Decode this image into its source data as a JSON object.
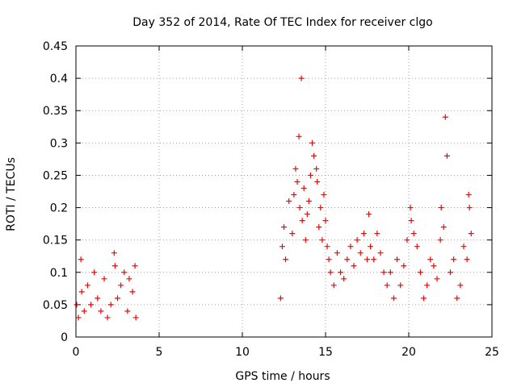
{
  "chart_data": {
    "type": "scatter",
    "title": "Day 352 of 2014, Rate Of TEC Index for receiver clgo",
    "xlabel": "GPS time / hours",
    "ylabel": "ROTI / TECUs",
    "xlim": [
      0,
      25
    ],
    "ylim": [
      0,
      0.45
    ],
    "xticks": [
      0,
      5,
      10,
      15,
      20,
      25
    ],
    "xtick_labels": [
      "0",
      "5",
      "10",
      "15",
      "20",
      "25"
    ],
    "yticks": [
      0,
      0.05,
      0.1,
      0.15,
      0.2,
      0.25,
      0.3,
      0.35,
      0.4,
      0.45
    ],
    "ytick_labels": [
      "0",
      "0.05",
      "0.1",
      "0.15",
      "0.2",
      "0.25",
      "0.3",
      "0.35",
      "0.4",
      "0.45"
    ],
    "grid": true,
    "marker": "+",
    "color": "#ff0000",
    "series": [
      {
        "name": "ROTI",
        "x": [
          0.05,
          0.15,
          0.3,
          0.35,
          0.5,
          0.7,
          0.9,
          1.1,
          1.3,
          1.5,
          1.7,
          1.9,
          2.1,
          2.3,
          2.35,
          2.5,
          2.7,
          2.9,
          3.1,
          3.2,
          3.4,
          3.55,
          3.6,
          12.3,
          12.4,
          12.5,
          12.6,
          12.8,
          13.0,
          13.1,
          13.2,
          13.3,
          13.4,
          13.45,
          13.55,
          13.6,
          13.7,
          13.8,
          13.9,
          14.0,
          14.1,
          14.2,
          14.3,
          14.45,
          14.5,
          14.6,
          14.7,
          14.8,
          14.9,
          15.0,
          15.1,
          15.2,
          15.3,
          15.5,
          15.7,
          15.9,
          16.1,
          16.3,
          16.5,
          16.7,
          16.9,
          17.1,
          17.3,
          17.5,
          17.6,
          17.7,
          17.9,
          18.1,
          18.3,
          18.5,
          18.7,
          18.9,
          19.1,
          19.3,
          19.5,
          19.7,
          19.9,
          20.1,
          20.15,
          20.3,
          20.5,
          20.7,
          20.9,
          21.1,
          21.3,
          21.5,
          21.7,
          21.9,
          21.95,
          22.1,
          22.2,
          22.3,
          22.5,
          22.7,
          22.9,
          23.1,
          23.3,
          23.5,
          23.6,
          23.65,
          23.75
        ],
        "y": [
          0.05,
          0.03,
          0.12,
          0.07,
          0.04,
          0.08,
          0.05,
          0.1,
          0.06,
          0.04,
          0.09,
          0.03,
          0.05,
          0.13,
          0.11,
          0.06,
          0.08,
          0.1,
          0.04,
          0.09,
          0.07,
          0.11,
          0.03,
          0.06,
          0.14,
          0.17,
          0.12,
          0.21,
          0.16,
          0.22,
          0.26,
          0.24,
          0.31,
          0.2,
          0.4,
          0.18,
          0.23,
          0.15,
          0.19,
          0.21,
          0.25,
          0.3,
          0.28,
          0.26,
          0.24,
          0.17,
          0.2,
          0.15,
          0.22,
          0.18,
          0.14,
          0.12,
          0.1,
          0.08,
          0.13,
          0.1,
          0.09,
          0.12,
          0.14,
          0.11,
          0.15,
          0.13,
          0.16,
          0.12,
          0.19,
          0.14,
          0.12,
          0.16,
          0.13,
          0.1,
          0.08,
          0.1,
          0.06,
          0.12,
          0.08,
          0.11,
          0.15,
          0.2,
          0.18,
          0.16,
          0.14,
          0.1,
          0.06,
          0.08,
          0.12,
          0.11,
          0.09,
          0.15,
          0.2,
          0.17,
          0.34,
          0.28,
          0.1,
          0.12,
          0.06,
          0.08,
          0.14,
          0.12,
          0.22,
          0.2,
          0.16
        ]
      }
    ]
  }
}
